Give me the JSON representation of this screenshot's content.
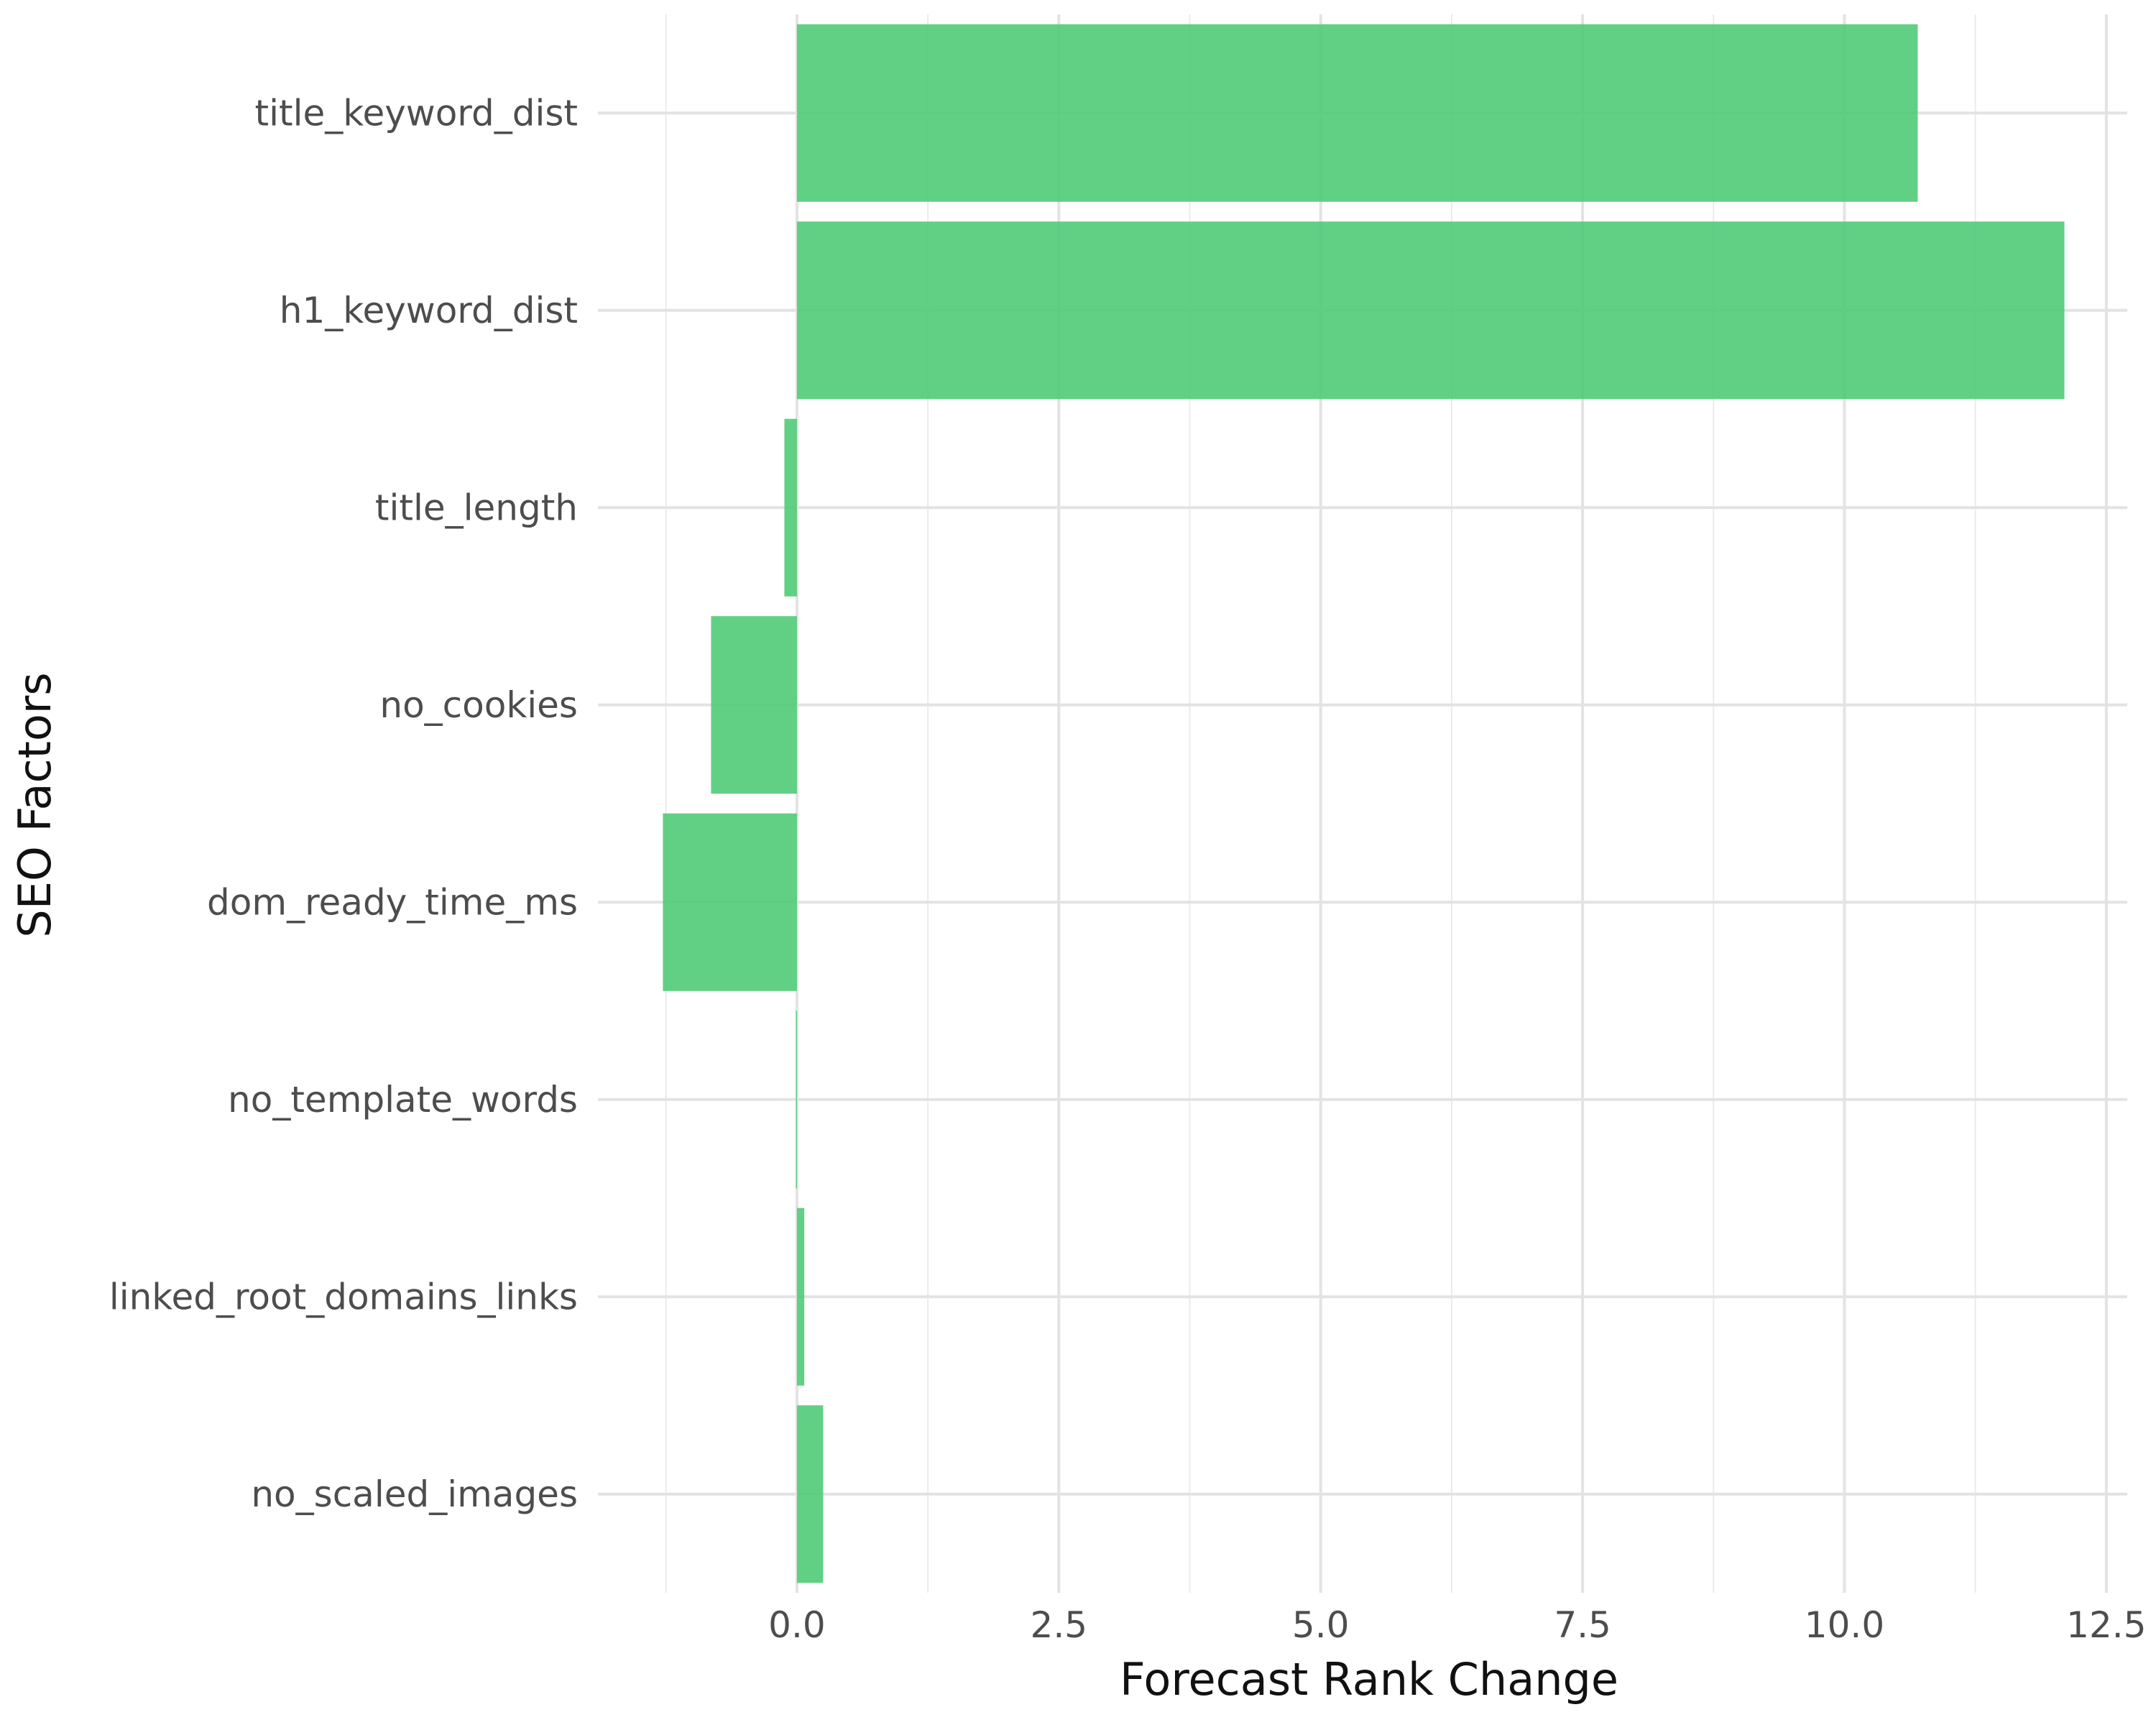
{
  "chart_data": {
    "type": "bar",
    "orientation": "horizontal",
    "title": "",
    "xlabel": "Forecast Rank Change",
    "ylabel": "SEO Factors",
    "categories": [
      "title_keyword_dist",
      "h1_keyword_dist",
      "title_length",
      "no_cookies",
      "dom_ready_time_ms",
      "no_template_words",
      "linked_root_domains_links",
      "no_scaled_images"
    ],
    "values": [
      10.7,
      12.1,
      -0.12,
      -0.82,
      -1.28,
      -0.01,
      0.07,
      0.25
    ],
    "xlim": [
      -1.9,
      12.7
    ],
    "xticks": [
      0.0,
      2.5,
      5.0,
      7.5,
      10.0,
      12.5
    ],
    "xtick_labels": [
      "0.0",
      "2.5",
      "5.0",
      "7.5",
      "10.0",
      "12.5"
    ],
    "bar_color": "#4cca73",
    "grid": true,
    "legend": "none"
  }
}
